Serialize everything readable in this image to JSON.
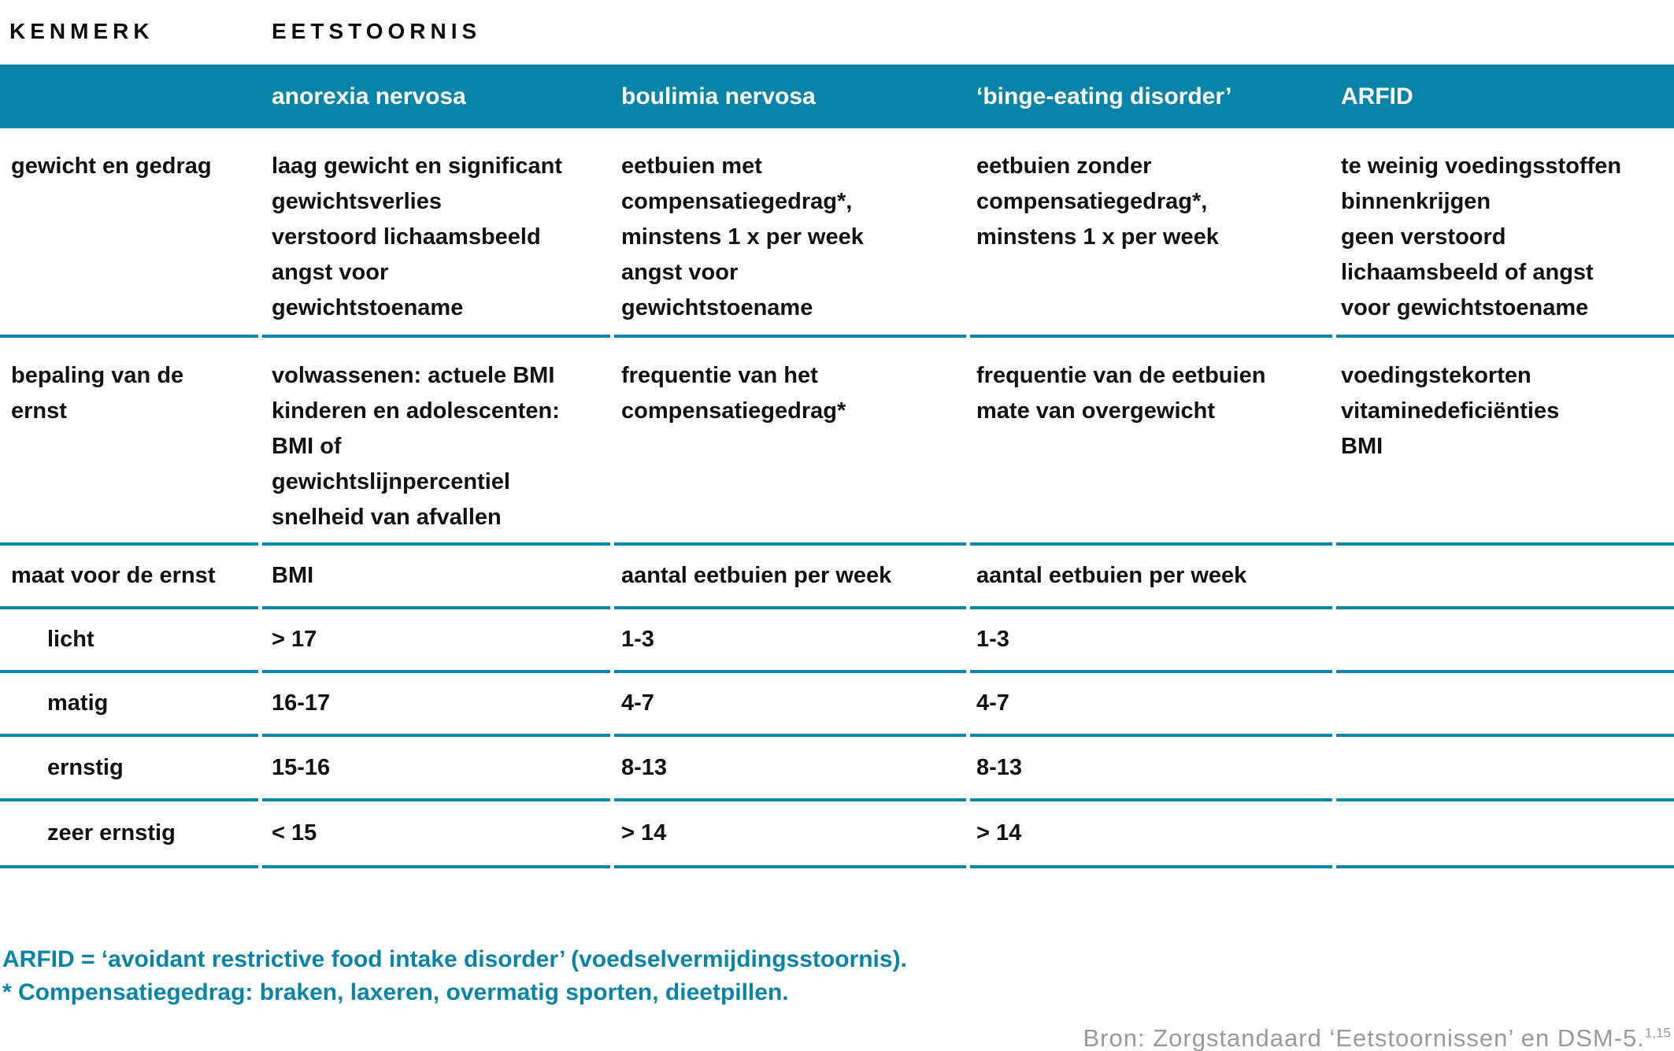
{
  "kicker": {
    "left": "KENMERK",
    "right": "EETSTOORNIS"
  },
  "header": {
    "columns": [
      "anorexia nervosa",
      "boulimia nervosa",
      "‘binge-eating disorder’",
      "ARFID"
    ],
    "background_color": "#0884A9",
    "text_color": "#ffffff"
  },
  "table": {
    "rows": [
      {
        "label": "gewicht en gedrag",
        "anorexia": [
          "laag gewicht en significant",
          "gewichtsverlies",
          "verstoord lichaamsbeeld",
          "angst voor",
          "gewichtstoename"
        ],
        "boulimia": [
          "eetbuien met",
          "compensatiegedrag*,",
          "minstens 1 x per week",
          "angst voor",
          "gewichtstoename"
        ],
        "binge": [
          "eetbuien zonder",
          "compensatiegedrag*,",
          "minstens 1 x per week"
        ],
        "arfid": [
          "te weinig voedingsstoffen",
          "binnenkrijgen",
          "geen verstoord",
          "lichaamsbeeld of angst",
          "voor gewichtstoename"
        ]
      },
      {
        "label": [
          "bepaling van de",
          "ernst"
        ],
        "anorexia": [
          "volwassenen: actuele BMI",
          "kinderen en adolescenten:",
          "BMI of",
          "gewichtslijnpercentiel",
          "snelheid van afvallen"
        ],
        "boulimia": [
          "frequentie van het",
          "compensatiegedrag*"
        ],
        "binge": [
          "frequentie van de eetbuien",
          "mate van overgewicht"
        ],
        "arfid": [
          "voedingstekorten",
          "vitaminedeficiënties",
          "BMI"
        ]
      },
      {
        "label": "maat voor de ernst",
        "anorexia": "BMI",
        "boulimia": "aantal eetbuien per week",
        "binge": "aantal eetbuien per week",
        "arfid": ""
      },
      {
        "label": "licht",
        "anorexia": "> 17",
        "boulimia": "1-3",
        "binge": "1-3",
        "arfid": ""
      },
      {
        "label": "matig",
        "anorexia": "16-17",
        "boulimia": "4-7",
        "binge": "4-7",
        "arfid": ""
      },
      {
        "label": "ernstig",
        "anorexia": "15-16",
        "boulimia": "8-13",
        "binge": "8-13",
        "arfid": ""
      },
      {
        "label": "zeer ernstig",
        "anorexia": "< 15",
        "boulimia": "> 14",
        "binge": "> 14",
        "arfid": ""
      }
    ]
  },
  "footnotes": {
    "arfid": "ARFID = ‘avoidant restrictive food intake disorder’ (voedselvermijdingsstoornis).",
    "compensatie": "* Compensatiegedrag: braken, laxeren, overmatig sporten, dieetpillen."
  },
  "source": {
    "text": "Bron: Zorgstandaard ‘Eetstoornissen’ en DSM-5.",
    "ref": "1,15"
  },
  "colors": {
    "teal": "#0884A9",
    "line_teal": "#0C85A9",
    "source_gray": "#97999B",
    "text_black": "#111111"
  }
}
